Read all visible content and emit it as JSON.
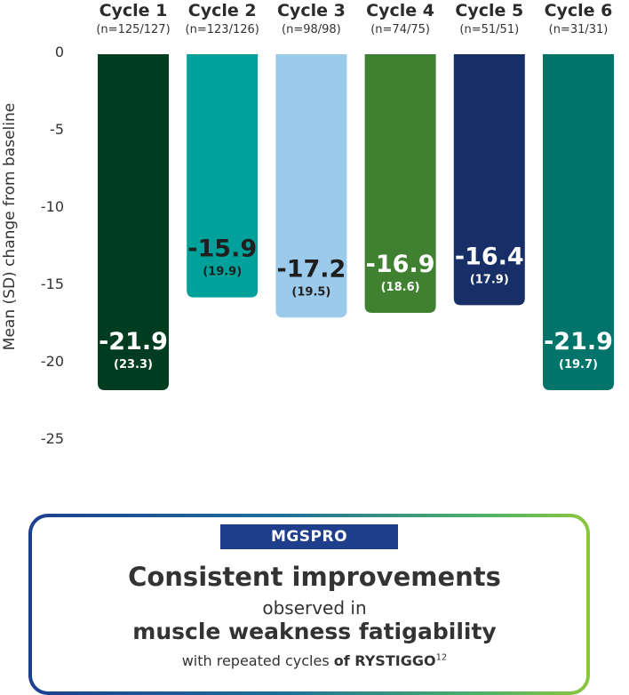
{
  "chart_data": {
    "type": "bar",
    "ylabel": "Mean (SD) change from baseline",
    "ylim": [
      -25,
      0
    ],
    "yticks": [
      0,
      -5,
      -10,
      -15,
      -20,
      -25
    ],
    "categories": [
      "Cycle 1",
      "Cycle 2",
      "Cycle 3",
      "Cycle 4",
      "Cycle 5",
      "Cycle 6"
    ],
    "n_labels": [
      "(n=125/127)",
      "(n=123/126)",
      "(n=98/98)",
      "(n=74/75)",
      "(n=51/51)",
      "(n=31/31)"
    ],
    "values": [
      -21.9,
      -15.9,
      -17.2,
      -16.9,
      -16.4,
      -21.9
    ],
    "sd": [
      23.3,
      19.9,
      19.5,
      18.6,
      17.9,
      19.7
    ],
    "value_labels": [
      "-21.9",
      "-15.9",
      "-17.2",
      "-16.9",
      "-16.4",
      "-21.9"
    ],
    "sd_labels": [
      "(23.3)",
      "(19.9)",
      "(19.5)",
      "(18.6)",
      "(17.9)",
      "(19.7)"
    ],
    "colors": [
      "#003c1f",
      "#00a19a",
      "#9ccaea",
      "#3f8130",
      "#172f66",
      "#00736a"
    ],
    "label_colors": [
      "#ffffff",
      "#1f1f1f",
      "#1f1f1f",
      "#ffffff",
      "#ffffff",
      "#ffffff"
    ]
  },
  "callout": {
    "badge": "MGSPRO",
    "line1": "Consistent improvements",
    "line2": "observed in",
    "line3": "muscle weakness fatigability",
    "line4_prefix": "with repeated cycles ",
    "line4_bold": "of RYSTIGGO",
    "line4_sup": "12",
    "border_colors": [
      "#1d3f8f",
      "#8cc63f"
    ]
  }
}
